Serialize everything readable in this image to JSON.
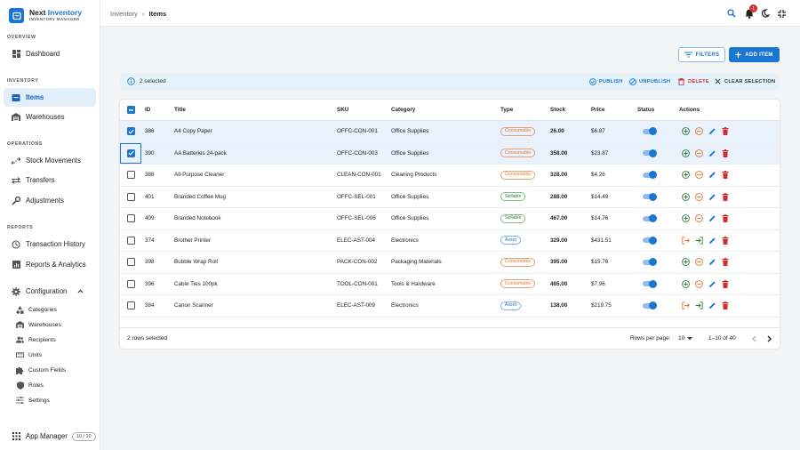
{
  "brand": {
    "name_a": "Next ",
    "name_b": "Inventory",
    "tagline": "INVENTORY MANAGER"
  },
  "sidebar": {
    "sections": {
      "overview": "OVERVIEW",
      "inventory": "INVENTORY",
      "operations": "OPERATIONS",
      "reports": "REPORTS"
    },
    "items": [
      {
        "label": "Dashboard",
        "icon": "dashboard-icon"
      },
      {
        "label": "Items",
        "icon": "items-icon",
        "active": true
      },
      {
        "label": "Warehouses",
        "icon": "warehouse-icon"
      },
      {
        "label": "Stock Movements",
        "icon": "stock-movements-icon"
      },
      {
        "label": "Transfers",
        "icon": "transfers-icon"
      },
      {
        "label": "Adjustments",
        "icon": "adjustments-icon"
      },
      {
        "label": "Transaction History",
        "icon": "history-icon"
      },
      {
        "label": "Reports & Analytics",
        "icon": "analytics-icon"
      },
      {
        "label": "Configuration",
        "icon": "gear-icon"
      }
    ],
    "config_items": [
      {
        "label": "Categories",
        "icon": "categories-icon"
      },
      {
        "label": "Warehouses",
        "icon": "warehouse-icon"
      },
      {
        "label": "Recipients",
        "icon": "recipients-icon"
      },
      {
        "label": "Units",
        "icon": "units-icon"
      },
      {
        "label": "Custom Fields",
        "icon": "puzzle-icon"
      },
      {
        "label": "Roles",
        "icon": "shield-icon"
      },
      {
        "label": "Settings",
        "icon": "settings-sliders-icon"
      }
    ],
    "app_manager": {
      "label": "App Manager",
      "badge": "10 / 10"
    }
  },
  "topbar": {
    "breadcrumb_parent": "Inventory",
    "breadcrumb_sep": "›",
    "breadcrumb_current": "Items",
    "notification_count": "1"
  },
  "toolbar": {
    "filters_label": "FILTERS",
    "add_label": "ADD ITEM"
  },
  "selection_bar": {
    "count_text": "2 selected",
    "publish": "PUBLISH",
    "unpublish": "UNPUBLISH",
    "delete": "DELETE",
    "clear": "CLEAR SELECTION"
  },
  "table": {
    "headers": {
      "id": "ID",
      "title": "Title",
      "sku": "SKU",
      "category": "Category",
      "type": "Type",
      "stock": "Stock",
      "price": "Price",
      "status": "Status",
      "actions": "Actions"
    },
    "rows": [
      {
        "id": "386",
        "title": "A4 Copy Paper",
        "sku": "OFFC-CON-001",
        "category": "Office Supplies",
        "type": "Consumable",
        "stock": "26.00",
        "price": "$6.87",
        "selected": true
      },
      {
        "id": "390",
        "title": "AA Batteries 24-pack",
        "sku": "OFFC-CON-003",
        "category": "Office Supplies",
        "type": "Consumable",
        "stock": "358.00",
        "price": "$23.87",
        "selected": true
      },
      {
        "id": "388",
        "title": "All-Purpose Cleaner",
        "sku": "CLEAN-CON-001",
        "category": "Cleaning Products",
        "type": "Consumable",
        "stock": "328.00",
        "price": "$4.26",
        "selected": false
      },
      {
        "id": "401",
        "title": "Branded Coffee Mug",
        "sku": "OFFC-SEL-001",
        "category": "Office Supplies",
        "type": "Sellable",
        "stock": "288.00",
        "price": "$14.49",
        "selected": false
      },
      {
        "id": "409",
        "title": "Branded Notebook",
        "sku": "OFFC-SEL-006",
        "category": "Office Supplies",
        "type": "Sellable",
        "stock": "467.00",
        "price": "$14.76",
        "selected": false
      },
      {
        "id": "374",
        "title": "Brother Printer",
        "sku": "ELEC-AST-004",
        "category": "Electronics",
        "type": "Asset",
        "stock": "329.00",
        "price": "$431.51",
        "selected": false
      },
      {
        "id": "398",
        "title": "Bubble Wrap Roll",
        "sku": "PACK-CON-002",
        "category": "Packaging Materials",
        "type": "Consumable",
        "stock": "395.00",
        "price": "$15.76",
        "selected": false
      },
      {
        "id": "396",
        "title": "Cable Ties 100pk",
        "sku": "TOOL-CON-001",
        "category": "Tools & Hardware",
        "type": "Consumable",
        "stock": "465.00",
        "price": "$7.96",
        "selected": false
      },
      {
        "id": "384",
        "title": "Canon Scanner",
        "sku": "ELEC-AST-009",
        "category": "Electronics",
        "type": "Asset",
        "stock": "138.00",
        "price": "$219.75",
        "selected": false
      }
    ]
  },
  "footer": {
    "rows_selected": "2 rows selected",
    "rows_per_page_label": "Rows per page:",
    "rows_per_page_value": "10",
    "range": "1–10 of 40"
  },
  "colors": {
    "primary": "#1976d2",
    "danger": "#d32f2f",
    "consumable": "#e6762e",
    "sellable": "#2e7d32",
    "positive": "#2e7d32"
  }
}
